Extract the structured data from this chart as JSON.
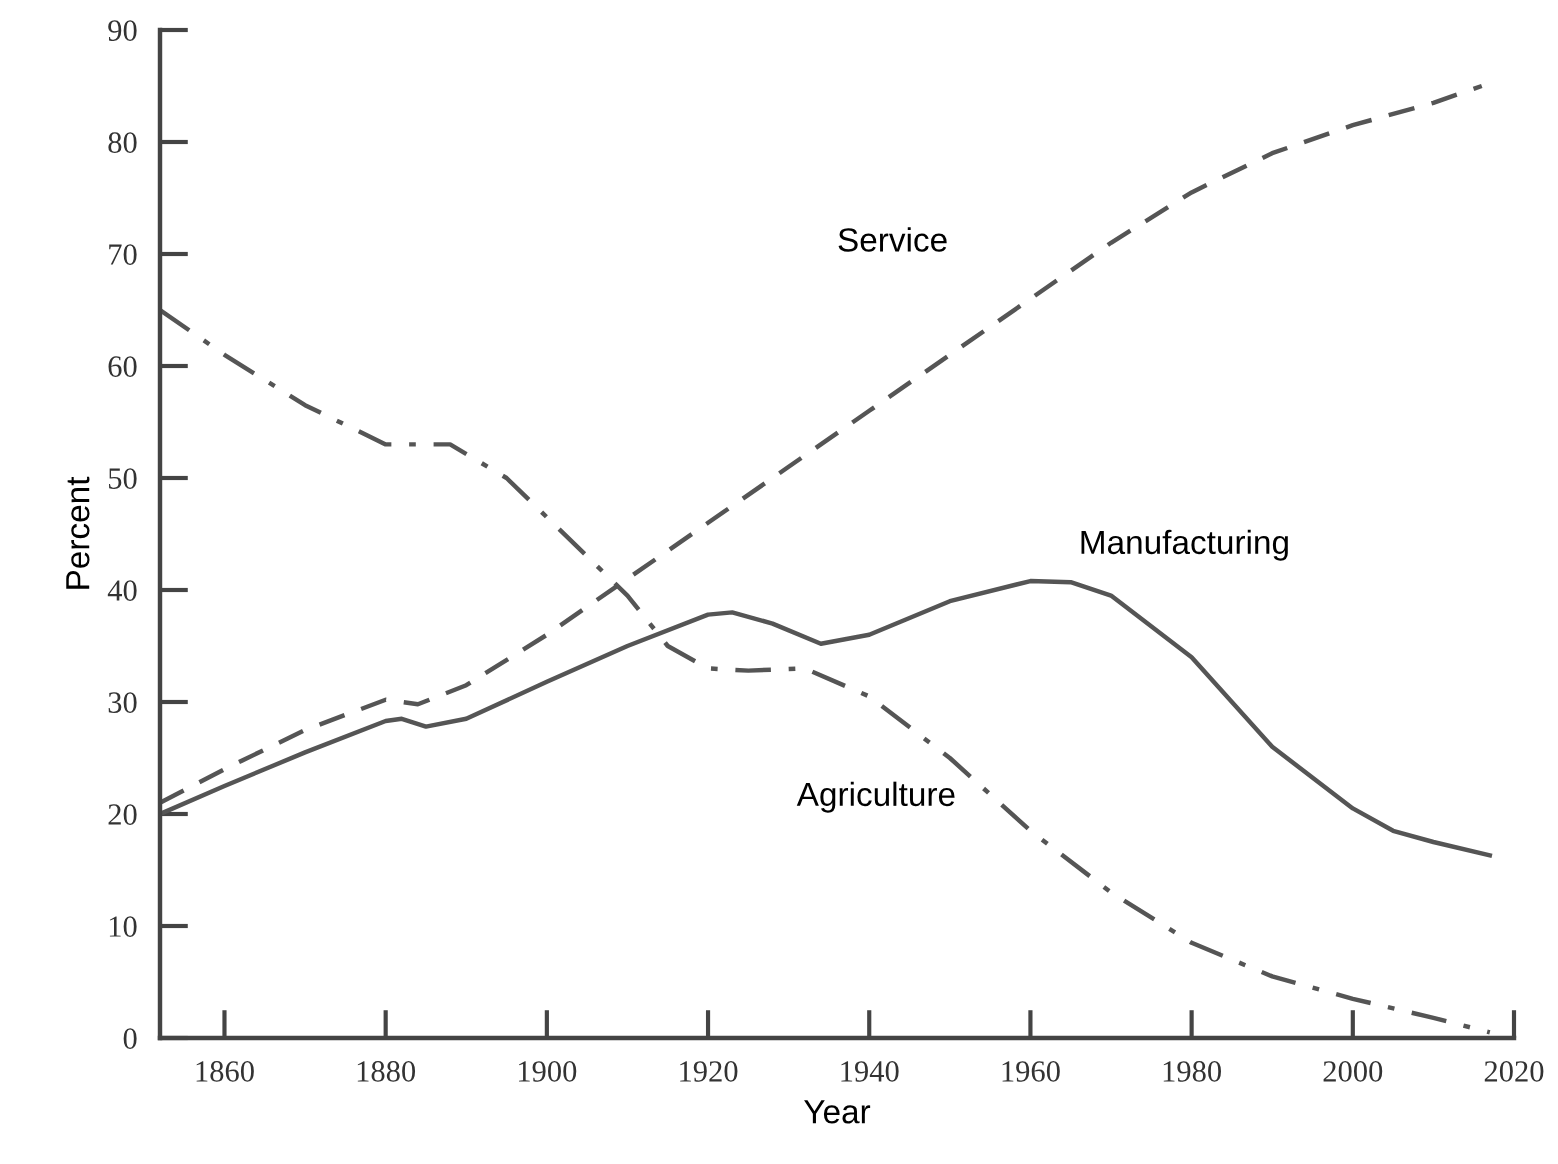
{
  "chart_data": {
    "type": "line",
    "xlabel": "Year",
    "ylabel": "Percent",
    "xlim": [
      1852,
      2020
    ],
    "xticks": [
      1860,
      1880,
      1900,
      1920,
      1940,
      1960,
      1980,
      2000,
      2020
    ],
    "ylim": [
      0,
      90
    ],
    "yticks": [
      0,
      10,
      20,
      30,
      40,
      50,
      60,
      70,
      80,
      90
    ],
    "grid": false,
    "legend": false,
    "marker": "none",
    "series": [
      {
        "name": "Service",
        "color": "#555555",
        "line_style": "dashed",
        "x": [
          1852,
          1860,
          1870,
          1880,
          1884,
          1890,
          1900,
          1910,
          1920,
          1930,
          1940,
          1950,
          1960,
          1970,
          1980,
          1990,
          2000,
          2010,
          2016
        ],
        "values": [
          21,
          24,
          27.5,
          30.2,
          29.8,
          31.5,
          36,
          41,
          46,
          51,
          56,
          61,
          66,
          71,
          75.5,
          79,
          81.5,
          83.5,
          85
        ]
      },
      {
        "name": "Manufacturing",
        "color": "#555555",
        "line_style": "solid",
        "x": [
          1852,
          1860,
          1870,
          1880,
          1882,
          1885,
          1890,
          1900,
          1910,
          1920,
          1923,
          1928,
          1934,
          1940,
          1950,
          1960,
          1965,
          1970,
          1980,
          1990,
          2000,
          2005,
          2010,
          2017
        ],
        "values": [
          20,
          22.5,
          25.5,
          28.3,
          28.5,
          27.8,
          28.5,
          31.8,
          35,
          37.8,
          38,
          37,
          35.2,
          36,
          39,
          40.8,
          40.7,
          39.5,
          34,
          26,
          20.5,
          18.5,
          17.5,
          16.3
        ]
      },
      {
        "name": "Agriculture",
        "color": "#555555",
        "line_style": "dashdot",
        "x": [
          1852,
          1860,
          1870,
          1880,
          1888,
          1895,
          1900,
          1910,
          1915,
          1920,
          1925,
          1932,
          1940,
          1950,
          1960,
          1970,
          1980,
          1990,
          2000,
          2010,
          2017
        ],
        "values": [
          65,
          61,
          56.5,
          53,
          53,
          50,
          46.5,
          39.5,
          35,
          33,
          32.8,
          33,
          30.5,
          25,
          18.5,
          13,
          8.5,
          5.5,
          3.5,
          1.8,
          0.5
        ]
      }
    ]
  }
}
